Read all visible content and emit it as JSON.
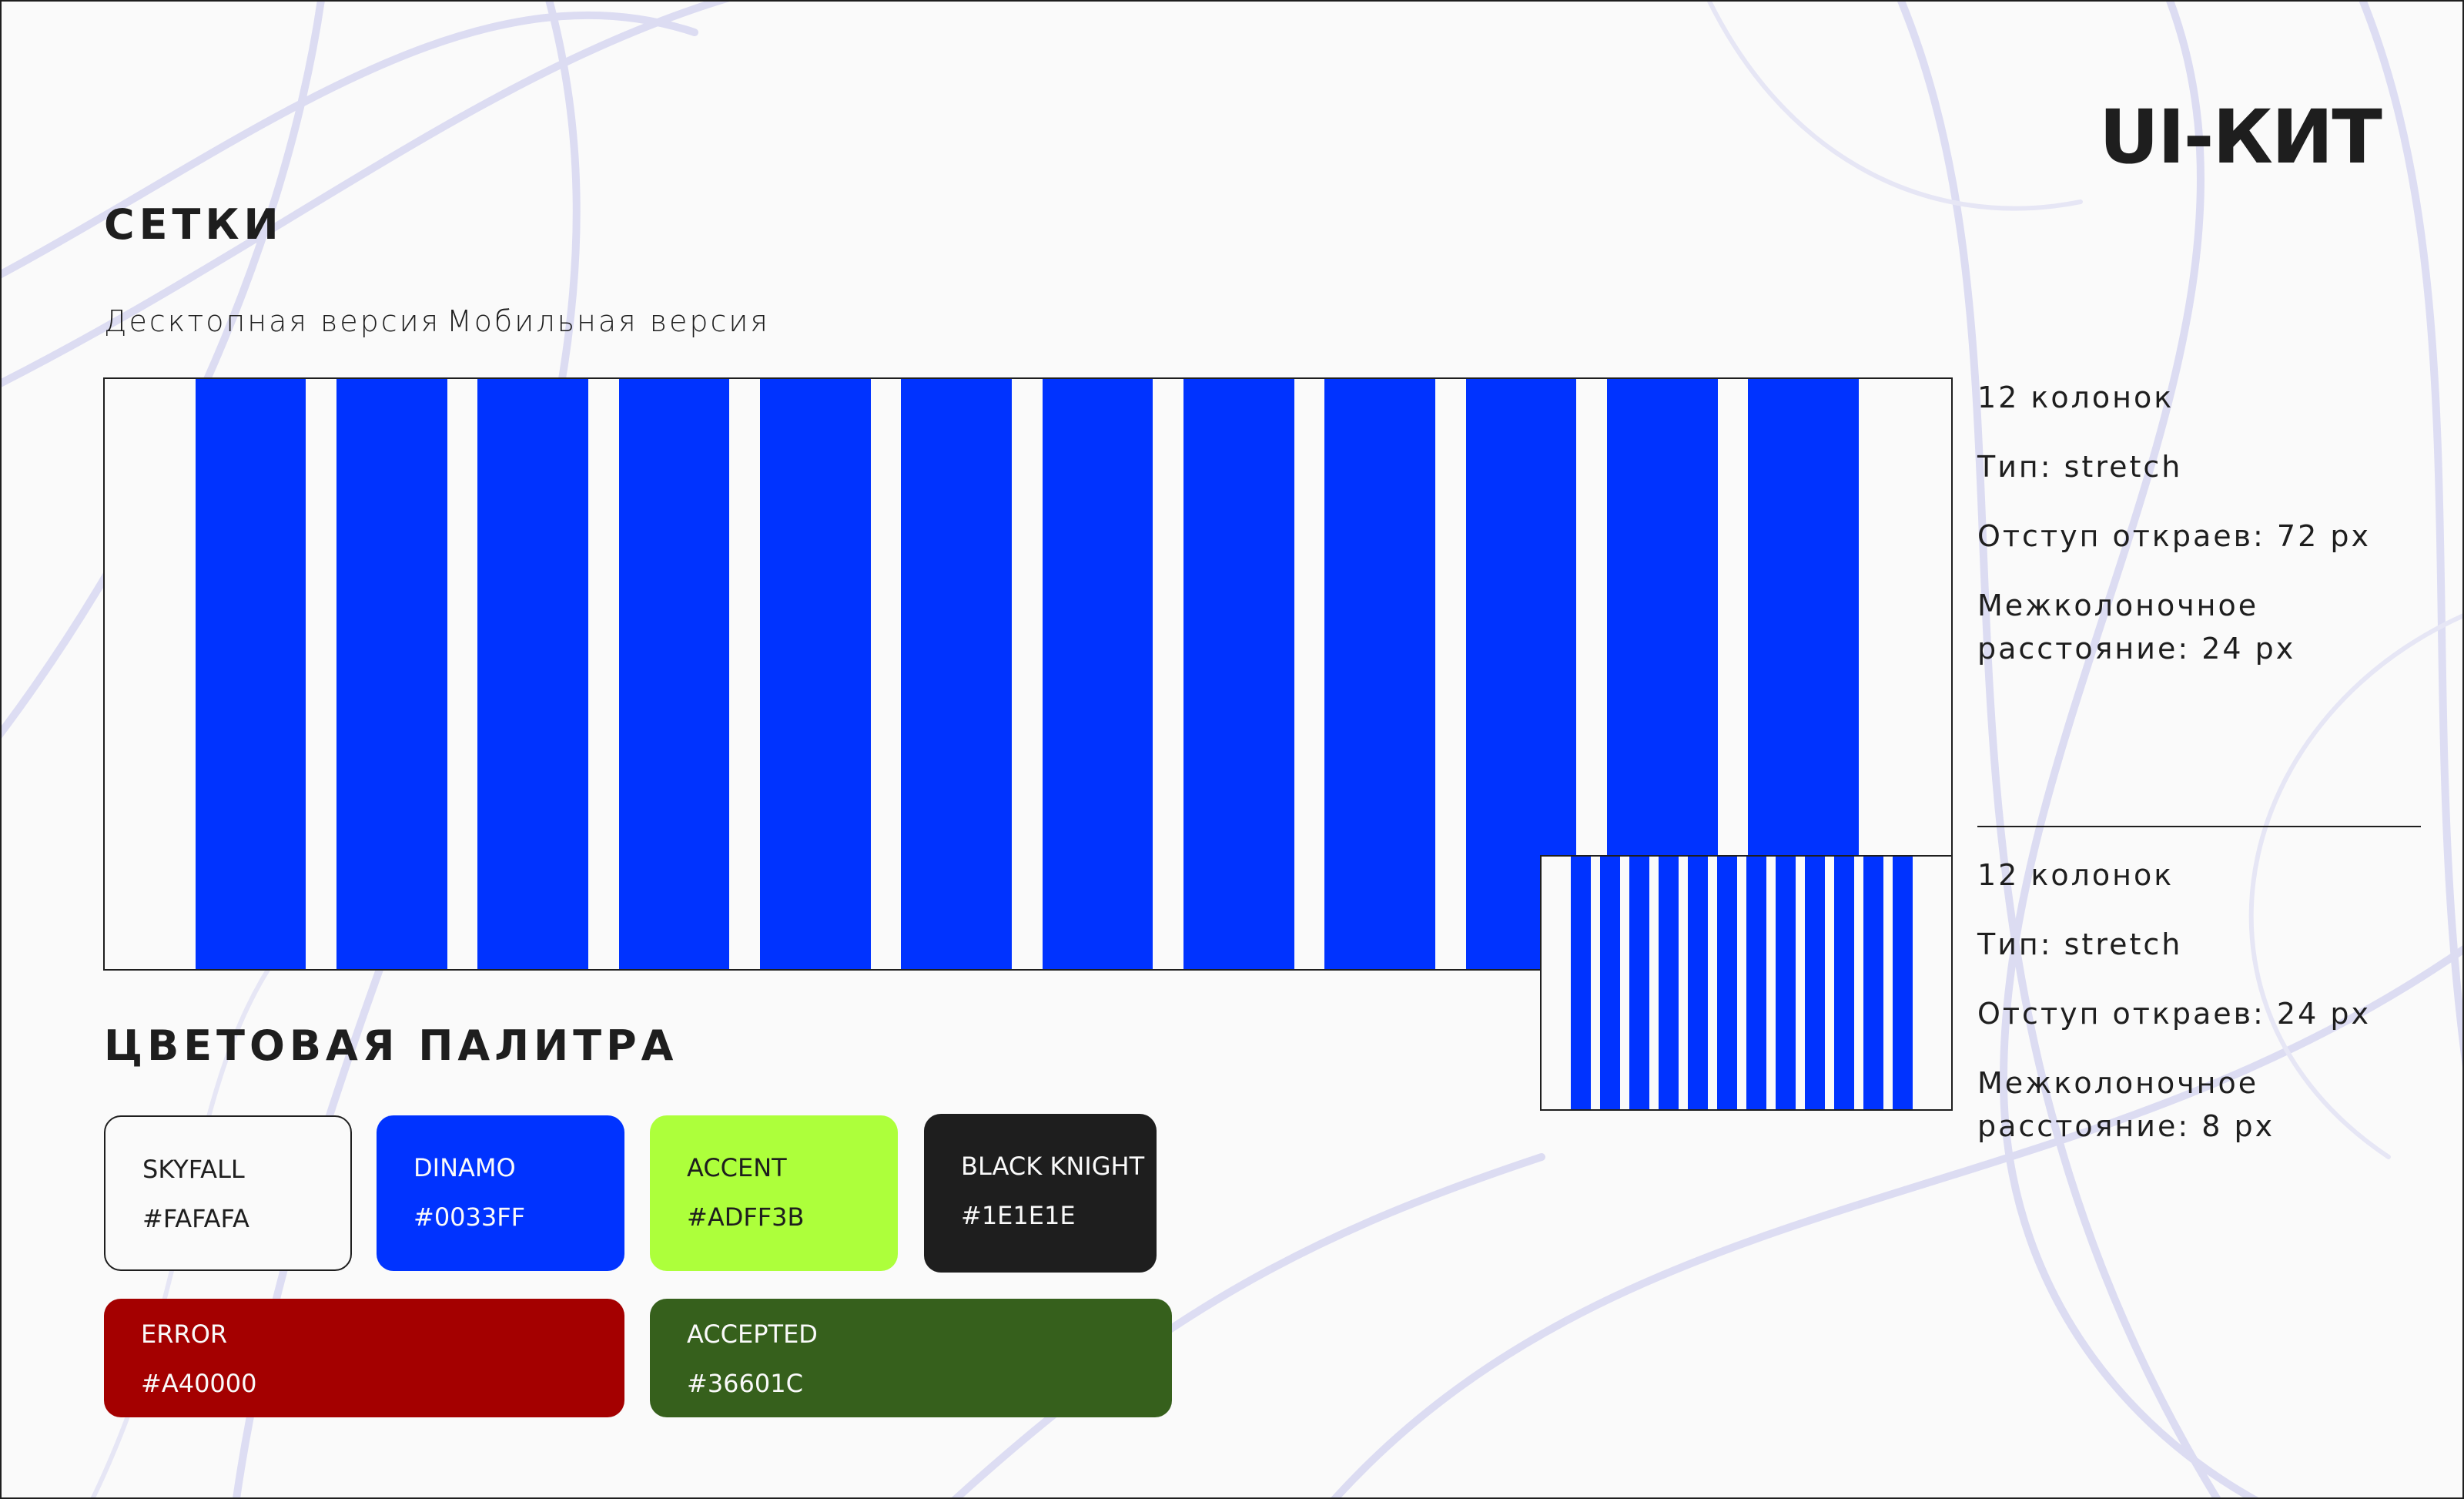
{
  "logo": "UI-КИТ",
  "grid_section": {
    "title": "СЕТКИ",
    "tabs": {
      "desktop": "Десктопная версия",
      "mobile": "Мобильная версия"
    }
  },
  "desktop_grid": {
    "columns": "12 колонок",
    "type": "Тип: stretch",
    "margin": "Отступ откраев: 72 px",
    "gutter": "Межколоночное расстояние: 24 px"
  },
  "mobile_grid": {
    "columns": "12 колонок",
    "type": "Тип: stretch",
    "margin": "Отступ откраев: 24 px",
    "gutter": "Межколоночное расстояние: 8 px"
  },
  "palette": {
    "title": "ЦВЕТОВАЯ ПАЛИТРА",
    "swatches": [
      {
        "name": "SKYFALL",
        "hex": "#FAFAFA"
      },
      {
        "name": "DINAMO",
        "hex": "#0033FF"
      },
      {
        "name": "ACCENT",
        "hex": "#ADFF3B"
      },
      {
        "name": "BLACK KNIGHT",
        "hex": "#1E1E1E"
      },
      {
        "name": "ERROR",
        "hex": "#A40000"
      },
      {
        "name": "ACCEPTED",
        "hex": "#36601C"
      }
    ]
  }
}
